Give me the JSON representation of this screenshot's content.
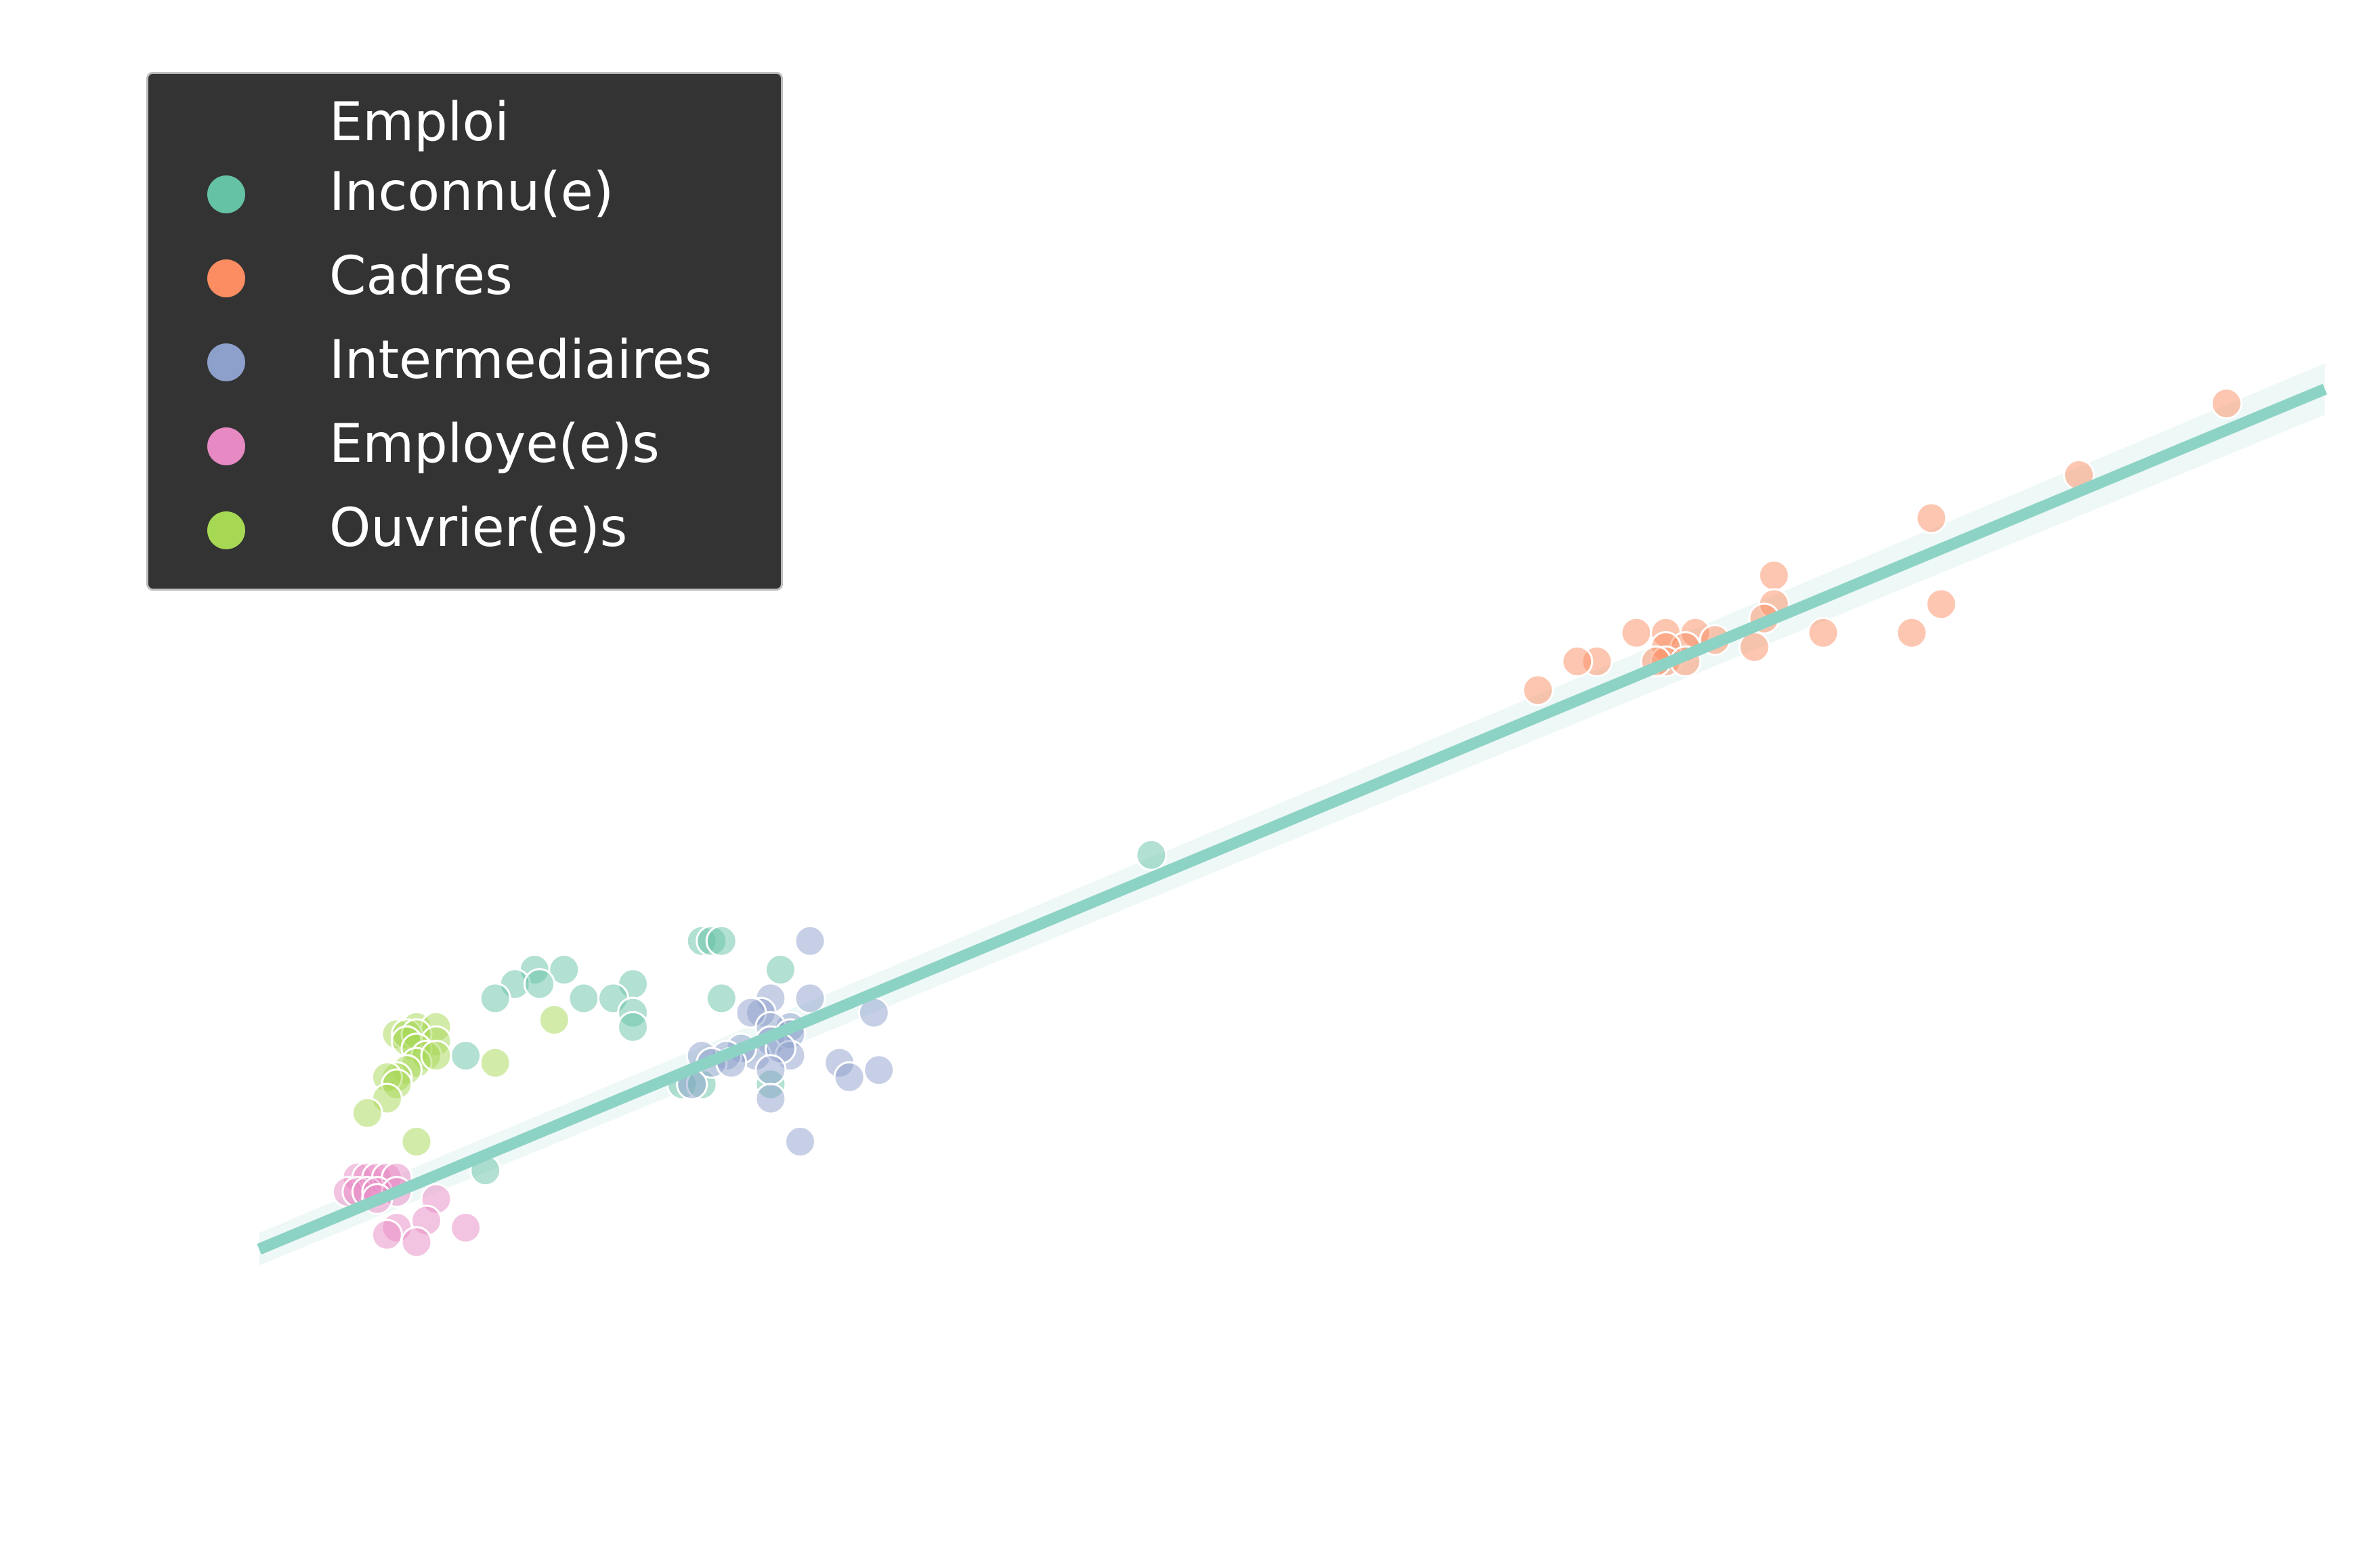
{
  "chart_data": {
    "type": "scatter",
    "title": "",
    "xlabel": "",
    "ylabel": "",
    "axes_visible": false,
    "xlim": [
      -0.5,
      20.5
    ],
    "ylim": [
      -2.7,
      16.2
    ],
    "legend": {
      "title": "Emploi",
      "placement": "top-left",
      "background": "#333333"
    },
    "regression_line": {
      "color": "#8dd3c5",
      "x": [
        0,
        21
      ],
      "y": [
        0,
        12
      ]
    },
    "series": [
      {
        "name": "Inconnu(e)",
        "color": "#66c2a5",
        "points": [
          [
            9.07,
            5.5
          ],
          [
            4.5,
            4.3
          ],
          [
            4.6,
            4.3
          ],
          [
            4.7,
            4.3
          ],
          [
            2.8,
            3.9
          ],
          [
            3.1,
            3.9
          ],
          [
            5.3,
            3.9
          ],
          [
            3.8,
            3.7
          ],
          [
            2.6,
            3.7
          ],
          [
            2.85,
            3.7
          ],
          [
            3.3,
            3.5
          ],
          [
            2.4,
            3.5
          ],
          [
            3.6,
            3.5
          ],
          [
            4.7,
            3.5
          ],
          [
            3.8,
            3.3
          ],
          [
            3.8,
            3.1
          ],
          [
            2.1,
            2.7
          ],
          [
            4.3,
            2.3
          ],
          [
            4.5,
            2.3
          ],
          [
            5.2,
            2.3
          ],
          [
            2.3,
            1.1
          ]
        ]
      },
      {
        "name": "Cadres",
        "color": "#fc8d62",
        "points": [
          [
            20.0,
            11.8
          ],
          [
            18.5,
            10.8
          ],
          [
            17.0,
            10.2
          ],
          [
            15.4,
            9.4
          ],
          [
            15.4,
            9.0
          ],
          [
            17.1,
            9.0
          ],
          [
            16.8,
            8.6
          ],
          [
            15.3,
            8.8
          ],
          [
            14.0,
            8.6
          ],
          [
            14.3,
            8.6
          ],
          [
            14.6,
            8.6
          ],
          [
            14.8,
            8.5
          ],
          [
            14.5,
            8.4
          ],
          [
            14.3,
            8.4
          ],
          [
            15.2,
            8.4
          ],
          [
            15.9,
            8.6
          ],
          [
            14.3,
            8.2
          ],
          [
            13.6,
            8.2
          ],
          [
            13.4,
            8.2
          ],
          [
            14.5,
            8.2
          ],
          [
            13.0,
            7.8
          ],
          [
            14.2,
            8.2
          ]
        ]
      },
      {
        "name": "Intermediaires",
        "color": "#8da0cb",
        "points": [
          [
            6.25,
            3.3
          ],
          [
            5.6,
            4.3
          ],
          [
            5.6,
            3.5
          ],
          [
            5.2,
            3.5
          ],
          [
            5.1,
            3.3
          ],
          [
            5.0,
            3.3
          ],
          [
            5.4,
            3.1
          ],
          [
            5.2,
            3.1
          ],
          [
            5.2,
            2.9
          ],
          [
            5.4,
            3.0
          ],
          [
            5.4,
            2.7
          ],
          [
            5.05,
            2.7
          ],
          [
            4.9,
            2.8
          ],
          [
            4.75,
            2.7
          ],
          [
            4.5,
            2.7
          ],
          [
            4.6,
            2.6
          ],
          [
            4.8,
            2.6
          ],
          [
            5.3,
            2.8
          ],
          [
            5.2,
            2.5
          ],
          [
            4.4,
            2.3
          ],
          [
            5.9,
            2.6
          ],
          [
            6.0,
            2.4
          ],
          [
            6.3,
            2.5
          ],
          [
            5.2,
            2.1
          ],
          [
            5.5,
            1.5
          ]
        ]
      },
      {
        "name": "Employe(e)s",
        "color": "#e78ac3",
        "points": [
          [
            1.0,
            1.0
          ],
          [
            1.1,
            1.0
          ],
          [
            1.2,
            1.0
          ],
          [
            1.3,
            1.0
          ],
          [
            1.4,
            1.0
          ],
          [
            0.9,
            0.8
          ],
          [
            1.0,
            0.8
          ],
          [
            1.1,
            0.8
          ],
          [
            1.2,
            0.8
          ],
          [
            1.4,
            0.8
          ],
          [
            1.2,
            0.7
          ],
          [
            1.8,
            0.7
          ],
          [
            1.7,
            0.4
          ],
          [
            1.4,
            0.3
          ],
          [
            1.3,
            0.2
          ],
          [
            2.1,
            0.3
          ],
          [
            1.6,
            0.1
          ]
        ]
      },
      {
        "name": "Ouvrier(e)s",
        "color": "#a6d854",
        "points": [
          [
            3.0,
            3.2
          ],
          [
            1.6,
            3.1
          ],
          [
            1.8,
            3.1
          ],
          [
            1.4,
            3.0
          ],
          [
            1.5,
            3.0
          ],
          [
            1.6,
            3.0
          ],
          [
            1.5,
            2.9
          ],
          [
            1.8,
            2.9
          ],
          [
            1.6,
            2.8
          ],
          [
            1.7,
            2.7
          ],
          [
            1.6,
            2.6
          ],
          [
            1.8,
            2.7
          ],
          [
            2.4,
            2.6
          ],
          [
            1.5,
            2.5
          ],
          [
            1.4,
            2.4
          ],
          [
            1.3,
            2.4
          ],
          [
            1.4,
            2.3
          ],
          [
            1.3,
            2.1
          ],
          [
            1.1,
            1.9
          ],
          [
            1.6,
            1.5
          ]
        ]
      }
    ]
  }
}
